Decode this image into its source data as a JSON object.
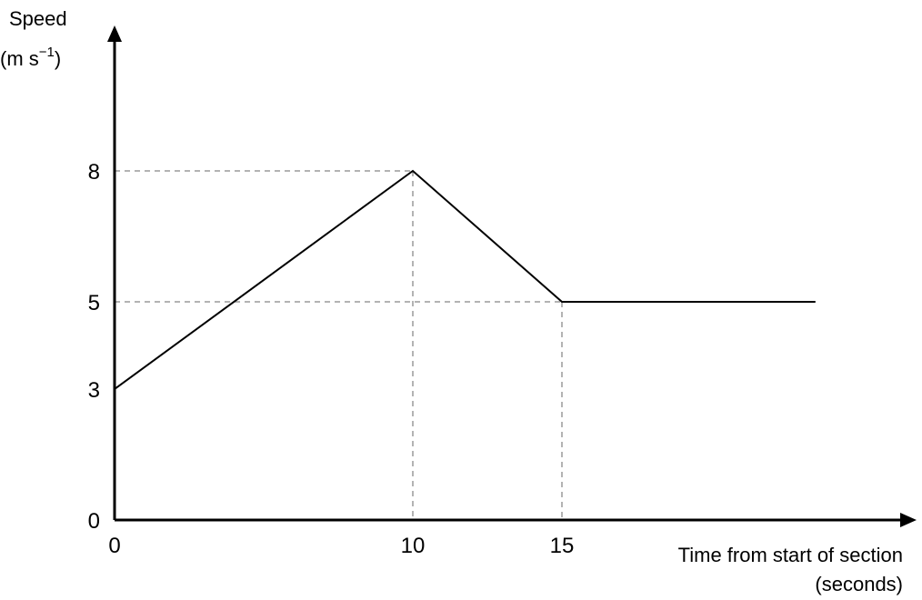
{
  "chart_data": {
    "type": "line",
    "title": "",
    "ylabel_line1": "Speed",
    "ylabel_line2_prefix": "(m s",
    "ylabel_line2_sup": "−1",
    "ylabel_line2_suffix": ")",
    "xlabel_line1": "Time from start of section",
    "xlabel_line2": "(seconds)",
    "xlim": [
      0,
      26
    ],
    "ylim": [
      0,
      9
    ],
    "x_ticks": [
      0,
      10,
      15
    ],
    "x_tick_labels": [
      "0",
      "10",
      "15"
    ],
    "y_ticks": [
      0,
      3,
      5,
      8
    ],
    "y_tick_labels": [
      "0",
      "3",
      "5",
      "8"
    ],
    "guides": [
      {
        "x": 10,
        "y": 8
      },
      {
        "x": 15,
        "y": 5
      }
    ],
    "grid": false,
    "legend": "none",
    "series": [
      {
        "x": [
          0,
          10,
          15,
          23.5
        ],
        "y": [
          3,
          8,
          5,
          5
        ]
      }
    ]
  }
}
